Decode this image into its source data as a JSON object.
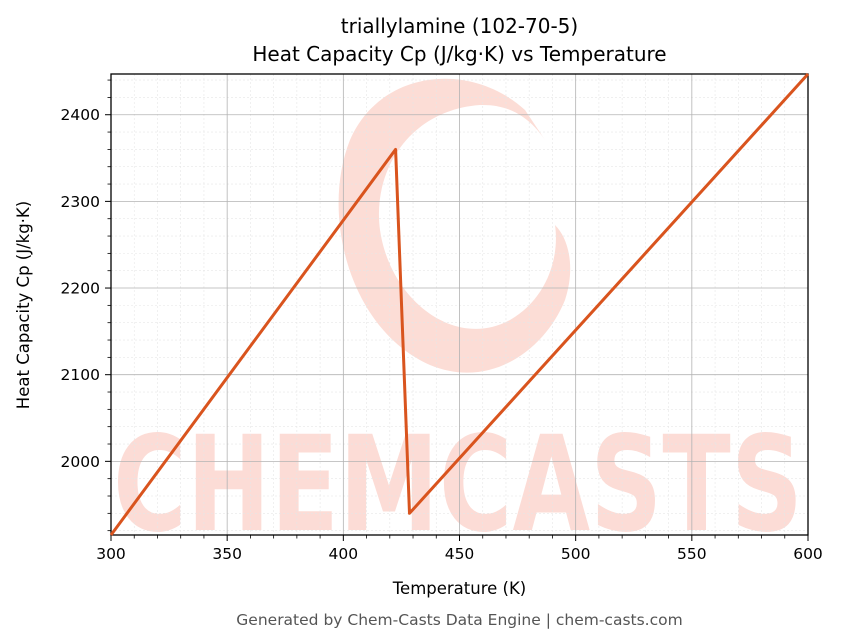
{
  "chart_data": {
    "type": "line",
    "title_line1": "triallylamine (102-70-5)",
    "title_line2": "Heat Capacity Cp (J/kg·K) vs Temperature",
    "xlabel": "Temperature (K)",
    "ylabel": "Heat Capacity Cp (J/kg·K)",
    "xlim": [
      300,
      600
    ],
    "ylim": [
      1915,
      2447
    ],
    "xticks": [
      300,
      350,
      400,
      450,
      500,
      550,
      600
    ],
    "yticks": [
      2000,
      2100,
      2200,
      2300,
      2400
    ],
    "grid": true,
    "series": [
      {
        "color": "#d9541e",
        "x": [
          300,
          422.5,
          428.5,
          600
        ],
        "y": [
          1915,
          2360,
          1940,
          2447
        ]
      }
    ]
  },
  "watermark": {
    "text": "CHEMCASTS",
    "color": "#fcd9d2"
  },
  "footer": "Generated by Chem-Casts Data Engine | chem-casts.com"
}
